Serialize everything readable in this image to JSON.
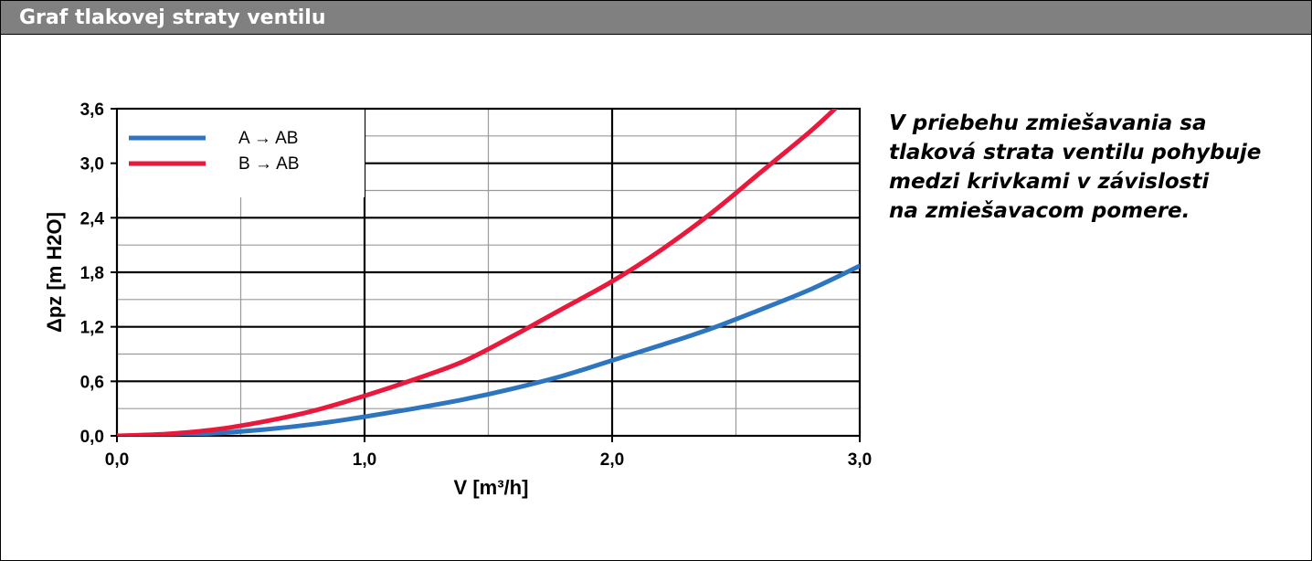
{
  "header": {
    "title": "Graf tlakovej straty ventilu"
  },
  "note": {
    "lines": [
      "V priebehu zmiešavania sa",
      "tlaková strata ventilu pohybuje",
      "medzi krivkami v závislosti",
      "na zmiešavacom pomere."
    ]
  },
  "chart_data": {
    "type": "line",
    "xlabel": "V [m³/h]",
    "ylabel": "Δpz [m H2O]",
    "xlim": [
      0,
      3.0
    ],
    "ylim": [
      0,
      3.6
    ],
    "x_ticks": [
      "0,0",
      "1,0",
      "2,0",
      "3,0"
    ],
    "y_ticks": [
      "0,0",
      "0,6",
      "1,2",
      "1,8",
      "2,4",
      "3,0",
      "3,6"
    ],
    "grid": true,
    "legend": "top-left",
    "series": [
      {
        "name": "A → AB",
        "color": "#2e75c0",
        "x": [
          0,
          0.2,
          0.4,
          0.6,
          0.8,
          1.0,
          1.2,
          1.4,
          1.6,
          1.8,
          2.0,
          2.2,
          2.4,
          2.6,
          2.8,
          3.0
        ],
        "y": [
          0,
          0.01,
          0.03,
          0.07,
          0.13,
          0.21,
          0.3,
          0.4,
          0.52,
          0.66,
          0.83,
          1.0,
          1.18,
          1.39,
          1.61,
          1.87
        ]
      },
      {
        "name": "B → AB",
        "color": "#e8193c",
        "x": [
          0,
          0.2,
          0.4,
          0.6,
          0.8,
          1.0,
          1.2,
          1.4,
          1.6,
          1.8,
          2.0,
          2.2,
          2.4,
          2.6,
          2.8,
          2.9
        ],
        "y": [
          0,
          0.02,
          0.07,
          0.16,
          0.28,
          0.44,
          0.62,
          0.82,
          1.1,
          1.4,
          1.7,
          2.05,
          2.45,
          2.9,
          3.35,
          3.6
        ]
      }
    ]
  }
}
